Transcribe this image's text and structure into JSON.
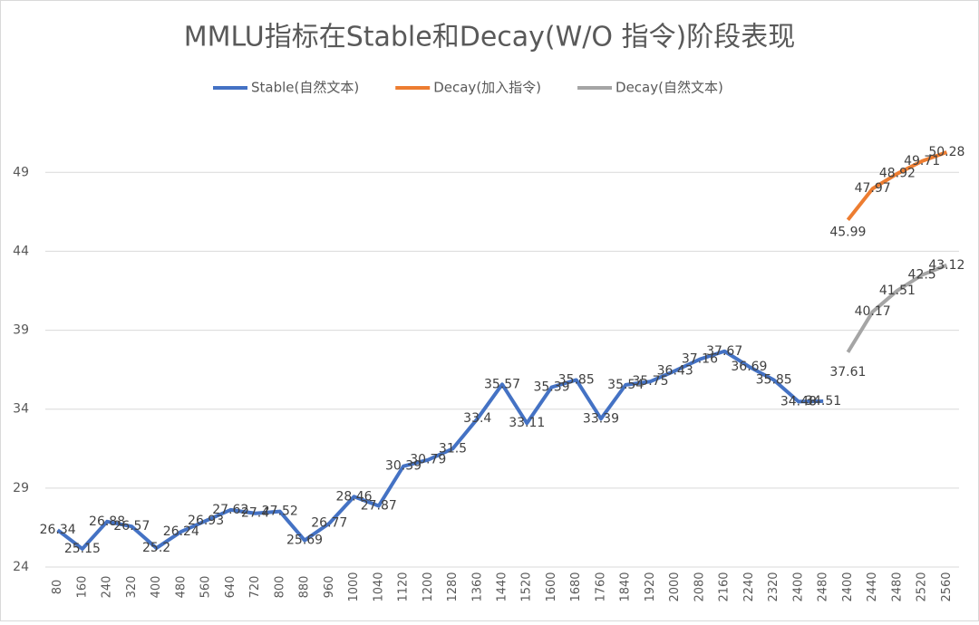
{
  "chart_data": {
    "type": "line",
    "title": "MMLU指标在Stable和Decay(W/O 指令)阶段表现",
    "categories": [
      "80",
      "160",
      "240",
      "320",
      "400",
      "480",
      "560",
      "640",
      "720",
      "800",
      "880",
      "960",
      "1000",
      "1040",
      "1120",
      "1200",
      "1280",
      "1360",
      "1440",
      "1520",
      "1600",
      "1680",
      "1760",
      "1840",
      "1920",
      "2000",
      "2080",
      "2160",
      "2240",
      "2320",
      "2400",
      "2480",
      "2400",
      "2440",
      "2480",
      "2520",
      "2560"
    ],
    "series": [
      {
        "name": "Stable(自然文本)",
        "color": "#4472c4",
        "values": [
          26.34,
          25.15,
          26.88,
          26.57,
          25.2,
          26.24,
          26.93,
          27.62,
          27.4,
          27.52,
          25.69,
          26.77,
          28.46,
          27.87,
          30.39,
          30.79,
          31.5,
          33.4,
          35.57,
          33.11,
          35.39,
          35.85,
          33.39,
          35.54,
          35.75,
          36.43,
          37.16,
          37.67,
          36.69,
          35.85,
          34.48,
          34.51,
          null,
          null,
          null,
          null,
          null
        ]
      },
      {
        "name": "Decay(加入指令)",
        "color": "#ed7d31",
        "values": [
          null,
          null,
          null,
          null,
          null,
          null,
          null,
          null,
          null,
          null,
          null,
          null,
          null,
          null,
          null,
          null,
          null,
          null,
          null,
          null,
          null,
          null,
          null,
          null,
          null,
          null,
          null,
          null,
          null,
          null,
          null,
          null,
          45.99,
          47.97,
          48.92,
          49.71,
          50.28
        ]
      },
      {
        "name": "Decay(自然文本)",
        "color": "#a5a5a5",
        "values": [
          null,
          null,
          null,
          null,
          null,
          null,
          null,
          null,
          null,
          null,
          null,
          null,
          null,
          null,
          null,
          null,
          null,
          null,
          null,
          null,
          null,
          null,
          null,
          null,
          null,
          null,
          null,
          null,
          null,
          null,
          null,
          null,
          37.61,
          40.17,
          41.51,
          42.5,
          43.12
        ]
      }
    ],
    "ylim": [
      24,
      52
    ],
    "yticks": [
      24,
      29,
      34,
      39,
      44,
      49
    ],
    "grid": true,
    "legend": "top"
  }
}
